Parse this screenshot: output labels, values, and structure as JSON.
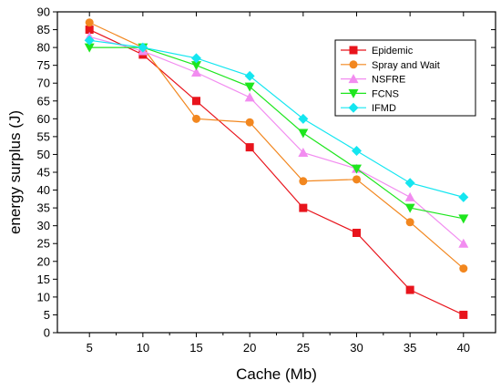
{
  "chart_data": {
    "type": "line",
    "xlabel": "Cache (Mb)",
    "ylabel": "energy surplus (J)",
    "x": [
      5,
      10,
      15,
      20,
      25,
      30,
      35,
      40
    ],
    "xlim": [
      2,
      43
    ],
    "ylim": [
      0,
      90
    ],
    "xticks": [
      5,
      10,
      15,
      20,
      25,
      30,
      35,
      40
    ],
    "yticks": [
      0,
      5,
      10,
      15,
      20,
      25,
      30,
      35,
      40,
      45,
      50,
      55,
      60,
      65,
      70,
      75,
      80,
      85,
      90
    ],
    "grid": false,
    "legend_position": "top-right",
    "series": [
      {
        "name": "Epidemic",
        "color": "#e8141c",
        "marker": "square",
        "values": [
          85,
          78,
          65,
          52,
          35,
          28,
          12,
          5
        ]
      },
      {
        "name": "Spray and Wait",
        "color": "#f2871f",
        "marker": "circle",
        "values": [
          87,
          80,
          60,
          59,
          42.5,
          43,
          31,
          18
        ]
      },
      {
        "name": "NSFRE",
        "color": "#f28cf0",
        "marker": "triangle-up",
        "values": [
          83,
          79,
          73,
          66,
          50.5,
          46,
          38,
          25
        ]
      },
      {
        "name": "FCNS",
        "color": "#1ee61e",
        "marker": "triangle-down",
        "values": [
          80,
          80,
          75,
          69,
          56,
          46,
          35,
          32
        ]
      },
      {
        "name": "IFMD",
        "color": "#14e6f0",
        "marker": "diamond",
        "values": [
          82,
          80,
          77,
          72,
          60,
          51,
          42,
          38
        ]
      }
    ]
  }
}
